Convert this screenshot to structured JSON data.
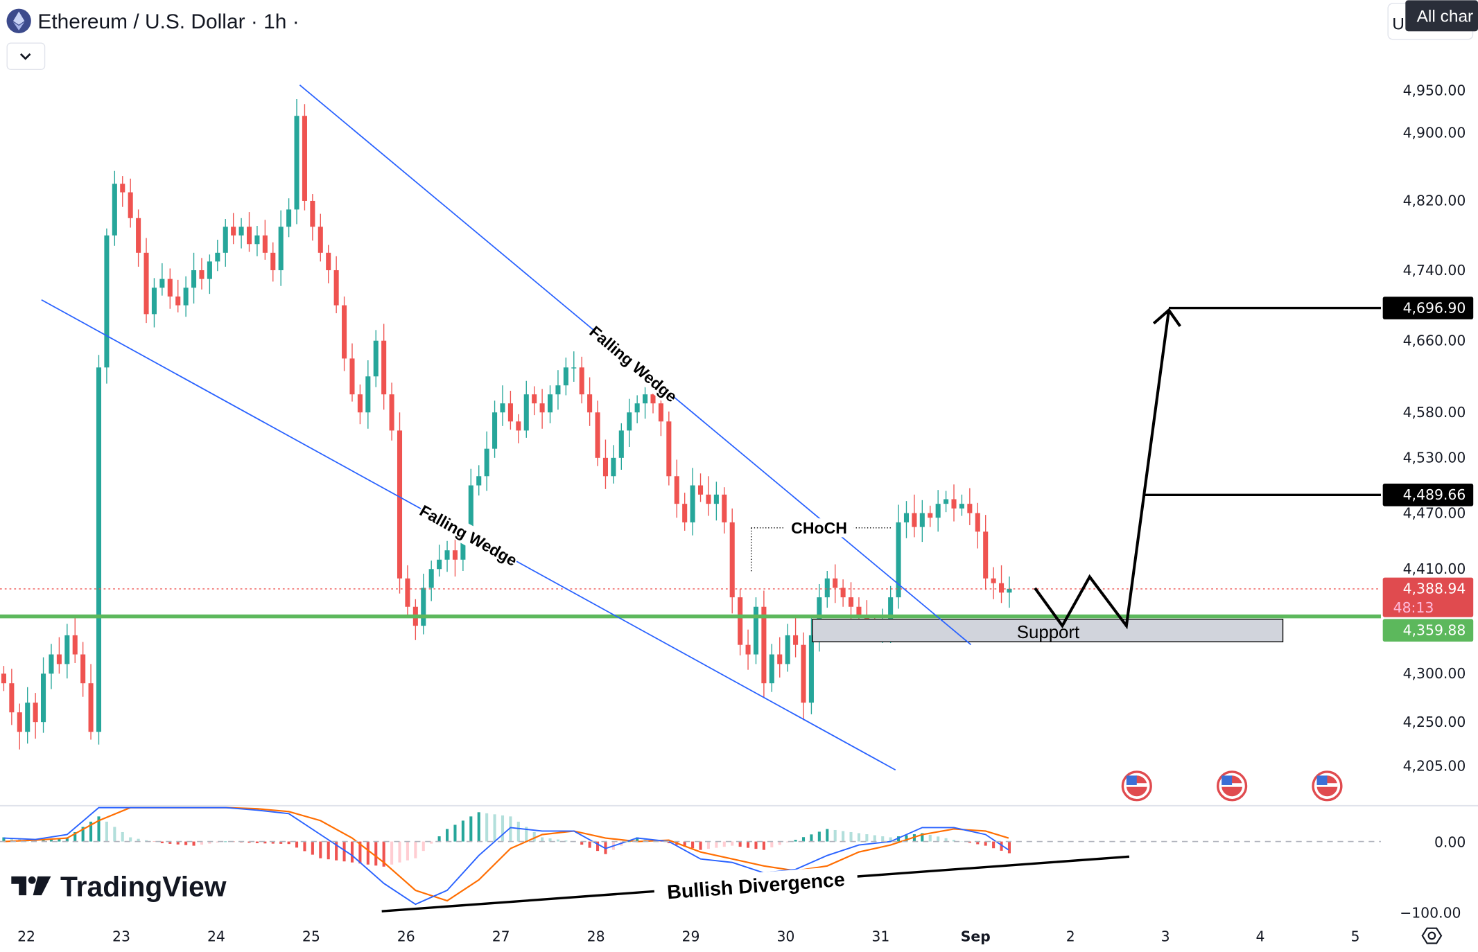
{
  "header": {
    "symbol_icon": "ethereum-icon",
    "title": "Ethereum / U.S. Dollar · 1h ·",
    "collapse_icon": "chevron-down-icon",
    "currency_button": "U",
    "all_charts_button": "All char"
  },
  "branding": {
    "logo_text": "TradingView"
  },
  "colors": {
    "up": "#26a69a",
    "down": "#ef5350",
    "macd": "#2962ff",
    "signal": "#ff6d00",
    "support_line": "#5cb85c",
    "wedge": "#2962ff"
  },
  "chart_data": {
    "type": "candlestick",
    "interval": "1h",
    "y_scale": "log",
    "ylim": [
      4190,
      4990
    ],
    "y_ticks": [
      "4,950.00",
      "4,900.00",
      "4,820.00",
      "4,740.00",
      "4,660.00",
      "4,580.00",
      "4,530.00",
      "4,470.00",
      "4,410.00",
      "4,300.00",
      "4,250.00",
      "4,205.00"
    ],
    "y_tick_values": [
      4950,
      4900,
      4820,
      4740,
      4660,
      4580,
      4530,
      4470,
      4410,
      4300,
      4250,
      4205
    ],
    "x_ticks": [
      "22",
      "23",
      "24",
      "25",
      "26",
      "27",
      "28",
      "29",
      "30",
      "31",
      "Sep",
      "2",
      "3",
      "4",
      "5"
    ],
    "closes": [
      4290,
      4260,
      4240,
      4270,
      4250,
      4300,
      4320,
      4310,
      4340,
      4320,
      4290,
      4240,
      4630,
      4780,
      4840,
      4830,
      4800,
      4760,
      4690,
      4720,
      4730,
      4710,
      4700,
      4720,
      4740,
      4730,
      4750,
      4760,
      4790,
      4780,
      4790,
      4770,
      4780,
      4760,
      4740,
      4790,
      4810,
      4920,
      4820,
      4790,
      4760,
      4740,
      4700,
      4640,
      4600,
      4580,
      4620,
      4660,
      4600,
      4560,
      4400,
      4370,
      4350,
      4390,
      4410,
      4420,
      4430,
      4420,
      4450,
      4500,
      4510,
      4540,
      4580,
      4590,
      4570,
      4560,
      4600,
      4590,
      4580,
      4600,
      4610,
      4630,
      4630,
      4600,
      4580,
      4530,
      4510,
      4530,
      4560,
      4580,
      4590,
      4600,
      4590,
      4570,
      4510,
      4480,
      4460,
      4500,
      4490,
      4480,
      4490,
      4460,
      4380,
      4330,
      4320,
      4370,
      4290,
      4320,
      4310,
      4340,
      4330,
      4270,
      4340,
      4380,
      4400,
      4390,
      4380,
      4370,
      4360,
      4350,
      4345,
      4350,
      4380,
      4460,
      4470,
      4455,
      4470,
      4465,
      4480,
      4485,
      4475,
      4480,
      4470,
      4450,
      4400,
      4395,
      4385,
      4389
    ],
    "price_labels": {
      "target": {
        "value": 4696.9,
        "text": "4,696.90"
      },
      "mid_target": {
        "value": 4489.66,
        "text": "4,489.66"
      },
      "last": {
        "value": 4388.94,
        "text": "4,388.94",
        "countdown": "48:13"
      },
      "support": {
        "value": 4359.88,
        "text": "4,359.88"
      }
    },
    "annotations": {
      "wedge_upper": "Falling Wedge",
      "wedge_lower": "Falling Wedge",
      "choch": "CHoCH",
      "support": "Support",
      "divergence": "Bullish Divergence"
    },
    "macd": {
      "y_ticks": [
        "0.00",
        "−100.00"
      ],
      "y_tick_values": [
        0,
        -100
      ],
      "macd_line": [
        5,
        3,
        10,
        60,
        60,
        55,
        50,
        50,
        45,
        40,
        10,
        -20,
        -60,
        -90,
        -70,
        -20,
        20,
        15,
        15,
        -10,
        5,
        0,
        -25,
        -30,
        -45,
        -40,
        -20,
        -5,
        0,
        20,
        20,
        10,
        -12
      ],
      "signal_line": [
        0,
        2,
        5,
        30,
        55,
        57,
        55,
        50,
        47,
        43,
        30,
        5,
        -30,
        -70,
        -85,
        -55,
        -10,
        10,
        15,
        5,
        0,
        2,
        -15,
        -25,
        -35,
        -42,
        -35,
        -15,
        -5,
        10,
        18,
        15,
        5
      ]
    },
    "events": [
      "us-flag-icon",
      "us-flag-icon",
      "us-flag-icon"
    ]
  }
}
